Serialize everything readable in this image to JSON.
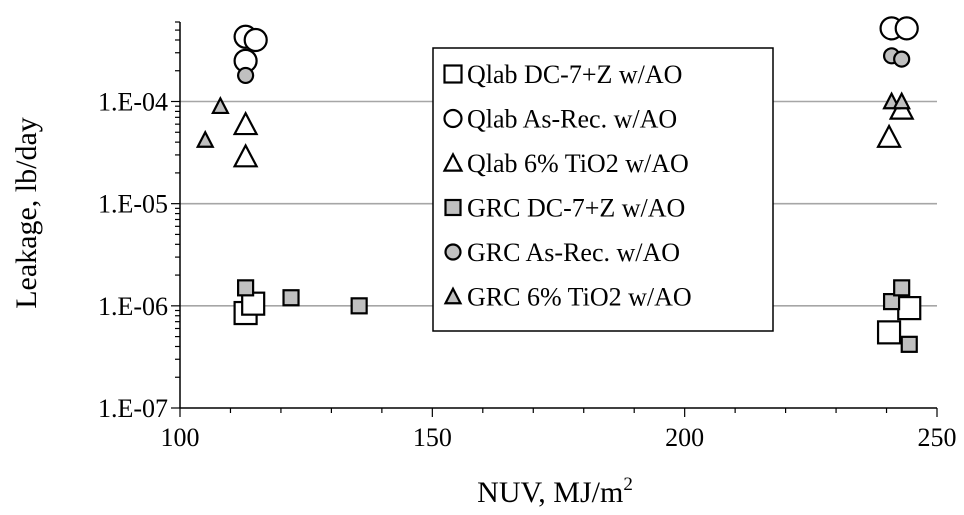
{
  "chart_data": {
    "type": "scatter",
    "xlabel": "NUV, MJ/m",
    "xlabel_superscript": "2",
    "ylabel": "Leakage, lb/day",
    "xlim": [
      100,
      250
    ],
    "ylim": [
      1e-07,
      0.0006
    ],
    "yscale": "log",
    "x_ticks": [
      100,
      150,
      200,
      250
    ],
    "x_tick_labels": [
      "100",
      "150",
      "200",
      "250"
    ],
    "y_ticks": [
      1e-07,
      1e-06,
      1e-05,
      0.0001
    ],
    "y_tick_labels": [
      "1.E-07",
      "1.E-06",
      "1.E-05",
      "1.E-04"
    ],
    "grid": "horizontal major",
    "legend_position": "center",
    "series": [
      {
        "name": "Qlab DC-7+Z w/AO",
        "marker": "square",
        "fill": "#ffffff",
        "points": [
          [
            113,
            8.5e-07
          ],
          [
            114.5,
            1.05e-06
          ],
          [
            240.5,
            5.5e-07
          ],
          [
            244.5,
            9.5e-07
          ]
        ]
      },
      {
        "name": "Qlab As-Rec. w/AO",
        "marker": "circle",
        "fill": "#ffffff",
        "points": [
          [
            113,
            0.00043
          ],
          [
            115,
            0.0004
          ],
          [
            113,
            0.00025
          ],
          [
            241,
            0.00052
          ],
          [
            244,
            0.00052
          ]
        ]
      },
      {
        "name": "Qlab 6% TiO2 w/AO",
        "marker": "triangle",
        "fill": "#ffffff",
        "points": [
          [
            113,
            6e-05
          ],
          [
            113,
            2.9e-05
          ],
          [
            240.5,
            4.5e-05
          ],
          [
            243,
            8.5e-05
          ]
        ]
      },
      {
        "name": "GRC DC-7+Z w/AO",
        "marker": "square",
        "fill": "#c0c0c0",
        "points": [
          [
            113,
            1.5e-06
          ],
          [
            122,
            1.2e-06
          ],
          [
            135.5,
            1e-06
          ],
          [
            241,
            1.1e-06
          ],
          [
            243,
            1.5e-06
          ],
          [
            244.5,
            4.2e-07
          ]
        ]
      },
      {
        "name": "GRC As-Rec. w/AO",
        "marker": "circle",
        "fill": "#c0c0c0",
        "points": [
          [
            113,
            0.00018
          ],
          [
            241,
            0.00028
          ],
          [
            243,
            0.00026
          ]
        ]
      },
      {
        "name": "GRC 6% TiO2 w/AO",
        "marker": "triangle",
        "fill": "#c0c0c0",
        "points": [
          [
            105,
            4.2e-05
          ],
          [
            108,
            9e-05
          ],
          [
            241,
            0.0001
          ],
          [
            243,
            0.0001
          ]
        ]
      }
    ],
    "colors": {
      "axis": "#000000",
      "grid": "#a6a6a6",
      "open_marker_fill": "#ffffff",
      "filled_marker_fill": "#c0c0c0",
      "marker_stroke": "#000000"
    }
  }
}
